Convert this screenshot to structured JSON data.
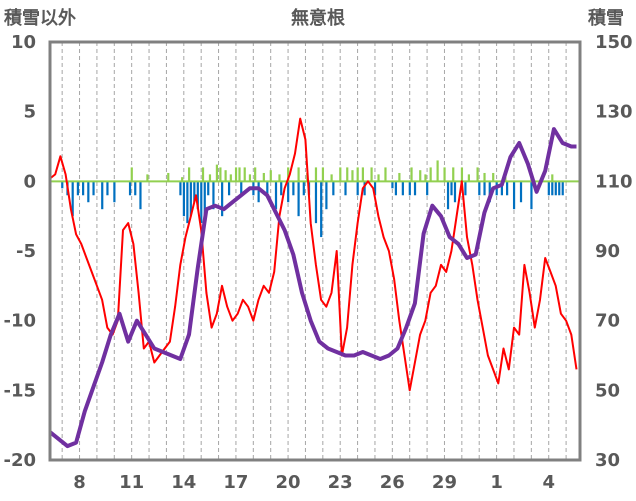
{
  "chart_data": {
    "type": "line",
    "title": "無意根",
    "y_left_label": "積雪以外",
    "y_right_label": "積雪",
    "y_left_ticks": [
      "10",
      "5",
      "0",
      "-5",
      "-10",
      "-15",
      "-20"
    ],
    "y_right_ticks": [
      "150",
      "130",
      "110",
      "90",
      "70",
      "50",
      "30"
    ],
    "y_left_range": [
      -20,
      10
    ],
    "y_right_range": [
      30,
      150
    ],
    "x_ticks": [
      "8",
      "11",
      "14",
      "17",
      "20",
      "23",
      "26",
      "29",
      "1",
      "4"
    ],
    "x_tick_days": [
      8,
      11,
      14,
      17,
      20,
      23,
      26,
      29,
      32,
      35
    ],
    "x_range": [
      6.3,
      36.8
    ],
    "grid": "vertical dashed, daily",
    "series": [
      {
        "role": "temperature",
        "axis": "left",
        "color": "#ff0000",
        "x": [
          6.3,
          6.6,
          6.9,
          7.2,
          7.5,
          7.8,
          8.1,
          8.4,
          8.7,
          9.0,
          9.3,
          9.6,
          9.9,
          10.2,
          10.5,
          10.8,
          11.1,
          11.4,
          11.7,
          12.0,
          12.3,
          12.6,
          12.9,
          13.2,
          13.5,
          13.8,
          14.1,
          14.4,
          14.7,
          15.0,
          15.3,
          15.6,
          15.9,
          16.2,
          16.5,
          16.8,
          17.1,
          17.4,
          17.7,
          18.0,
          18.3,
          18.6,
          18.9,
          19.2,
          19.5,
          19.8,
          20.1,
          20.4,
          20.7,
          21.0,
          21.3,
          21.6,
          21.9,
          22.2,
          22.5,
          22.8,
          23.1,
          23.4,
          23.7,
          24.0,
          24.3,
          24.6,
          24.9,
          25.2,
          25.5,
          25.8,
          26.1,
          26.4,
          26.7,
          27.0,
          27.3,
          27.6,
          27.9,
          28.2,
          28.5,
          28.8,
          29.1,
          29.4,
          29.7,
          30.0,
          30.3,
          30.6,
          30.9,
          31.2,
          31.5,
          31.8,
          32.1,
          32.4,
          32.7,
          33.0,
          33.3,
          33.6,
          33.9,
          34.2,
          34.5,
          34.8,
          35.1,
          35.4,
          35.7,
          36.0,
          36.3,
          36.6
        ],
        "y": [
          0.2,
          0.5,
          1.8,
          0.5,
          -2.0,
          -3.8,
          -4.5,
          -5.5,
          -6.5,
          -7.5,
          -8.5,
          -10.5,
          -11.0,
          -10.0,
          -3.5,
          -3.0,
          -4.5,
          -8.0,
          -12.0,
          -11.5,
          -13.0,
          -12.5,
          -12.0,
          -11.5,
          -9.0,
          -6.0,
          -4.0,
          -2.5,
          -1.0,
          -3.5,
          -8.0,
          -10.5,
          -9.5,
          -7.5,
          -9.0,
          -10.0,
          -9.5,
          -8.5,
          -9.0,
          -10.0,
          -8.5,
          -7.5,
          -8.0,
          -6.5,
          -2.5,
          -0.5,
          0.5,
          2.0,
          4.5,
          3.0,
          -3.0,
          -6.0,
          -8.5,
          -9.0,
          -8.0,
          -5.0,
          -12.5,
          -10.5,
          -6.0,
          -3.0,
          -0.5,
          0.0,
          -0.5,
          -2.5,
          -4.0,
          -5.0,
          -7.0,
          -10.0,
          -12.5,
          -15.0,
          -13.0,
          -11.0,
          -10.0,
          -8.0,
          -7.5,
          -6.0,
          -6.5,
          -5.0,
          -2.5,
          0.0,
          -4.0,
          -6.0,
          -8.5,
          -10.5,
          -12.5,
          -13.5,
          -14.5,
          -12.0,
          -13.5,
          -10.5,
          -11.0,
          -6.0,
          -8.0,
          -10.5,
          -8.5,
          -5.5,
          -6.5,
          -7.5,
          -9.5,
          -10.0,
          -11.0,
          -13.5
        ]
      },
      {
        "role": "snow depth",
        "axis": "right",
        "color": "#7030a0",
        "x": [
          6.3,
          6.8,
          7.3,
          7.8,
          8.3,
          8.8,
          9.3,
          9.8,
          10.3,
          10.8,
          11.3,
          11.8,
          12.3,
          12.8,
          13.3,
          13.8,
          14.3,
          14.8,
          15.3,
          15.8,
          16.3,
          16.8,
          17.3,
          17.8,
          18.3,
          18.8,
          19.3,
          19.8,
          20.3,
          20.8,
          21.3,
          21.8,
          22.3,
          22.8,
          23.3,
          23.8,
          24.3,
          24.8,
          25.3,
          25.8,
          26.3,
          26.8,
          27.3,
          27.8,
          28.3,
          28.8,
          29.3,
          29.8,
          30.3,
          30.8,
          31.3,
          31.8,
          32.3,
          32.8,
          33.3,
          33.8,
          34.3,
          34.8,
          35.3,
          35.8,
          36.3,
          36.6
        ],
        "y": [
          38,
          36,
          34,
          35,
          44,
          51,
          58,
          66,
          72,
          64,
          70,
          66,
          62,
          61,
          60,
          59,
          66,
          85,
          102,
          103,
          102,
          104,
          106,
          108,
          108,
          106,
          101,
          96,
          89,
          78,
          70,
          64,
          62,
          61,
          60,
          60,
          61,
          60,
          59,
          60,
          62,
          68,
          75,
          95,
          103,
          100,
          94,
          92,
          88,
          89,
          101,
          108,
          109,
          117,
          121,
          115,
          107,
          113,
          125,
          121,
          120,
          120
        ]
      },
      {
        "role": "snowfall",
        "axis": "left",
        "color": "#0070c0",
        "type": "bar",
        "x": [
          7.0,
          7.3,
          7.6,
          7.9,
          8.2,
          8.5,
          8.8,
          9.3,
          9.6,
          10.0,
          10.9,
          11.2,
          11.5,
          13.8,
          14.0,
          14.2,
          14.4,
          14.6,
          14.8,
          15.0,
          15.2,
          15.4,
          15.7,
          16.2,
          16.6,
          17.3,
          18.0,
          18.3,
          18.8,
          19.3,
          19.6,
          20.0,
          20.3,
          20.6,
          20.9,
          21.2,
          21.6,
          21.9,
          22.2,
          22.6,
          23.3,
          24.0,
          24.4,
          25.0,
          26.0,
          26.2,
          26.6,
          27.0,
          27.3,
          28.0,
          29.2,
          29.4,
          29.6,
          30.2,
          31.0,
          31.3,
          31.6,
          32.0,
          32.3,
          32.6,
          33.0,
          33.4,
          34.0,
          35.0,
          35.2,
          35.4,
          35.6,
          35.8
        ],
        "y": [
          -0.5,
          -1.0,
          -2.5,
          -1.0,
          -1.0,
          -1.5,
          -1.0,
          -2.0,
          -1.0,
          -1.5,
          -1.0,
          -1.0,
          -2.0,
          -1.0,
          -2.5,
          -3.0,
          -2.5,
          -1.5,
          -2.0,
          -3.0,
          -2.5,
          -1.0,
          -2.0,
          -2.5,
          -1.0,
          -1.0,
          -1.0,
          -1.5,
          -1.0,
          -2.0,
          -1.0,
          -1.5,
          -1.0,
          -2.5,
          -1.0,
          -1.0,
          -3.0,
          -4.0,
          -2.0,
          -1.0,
          -1.0,
          -1.0,
          -1.0,
          -1.0,
          -0.5,
          -1.0,
          -1.0,
          -1.0,
          -1.0,
          -1.0,
          -2.0,
          -1.0,
          -1.5,
          -1.0,
          -1.0,
          -1.0,
          -1.5,
          -1.0,
          -1.0,
          -1.0,
          -2.0,
          -1.5,
          -2.0,
          -1.0,
          -1.0,
          -1.0,
          -1.0,
          -1.0
        ]
      },
      {
        "role": "rainfall",
        "axis": "left",
        "color": "#92d050",
        "type": "bar",
        "x": [
          11.0,
          11.9,
          13.1,
          13.9,
          14.3,
          15.1,
          15.5,
          15.9,
          16.1,
          16.4,
          16.7,
          17.0,
          17.2,
          17.5,
          17.8,
          18.1,
          18.6,
          19.0,
          19.5,
          20.0,
          20.6,
          21.1,
          21.6,
          22.0,
          22.5,
          23.0,
          23.4,
          23.7,
          24.0,
          24.3,
          24.8,
          25.2,
          25.6,
          26.4,
          27.1,
          27.6,
          27.9,
          28.2,
          28.6,
          29.0,
          29.5,
          30.0,
          30.4,
          30.9,
          31.3,
          31.8,
          32.5,
          34.0,
          35.2
        ],
        "y": [
          1.0,
          0.5,
          0.6,
          0.3,
          1.0,
          1.0,
          0.5,
          1.2,
          1.0,
          0.8,
          0.5,
          1.0,
          1.0,
          1.0,
          0.5,
          1.0,
          0.6,
          0.8,
          0.5,
          1.0,
          1.0,
          0.6,
          1.0,
          1.0,
          0.5,
          1.0,
          1.0,
          0.8,
          1.0,
          1.0,
          1.0,
          0.5,
          1.0,
          0.6,
          1.0,
          0.8,
          0.5,
          1.0,
          1.5,
          1.0,
          1.0,
          1.0,
          0.5,
          1.0,
          0.6,
          0.6,
          0.5,
          0.5,
          0.5
        ]
      }
    ]
  }
}
